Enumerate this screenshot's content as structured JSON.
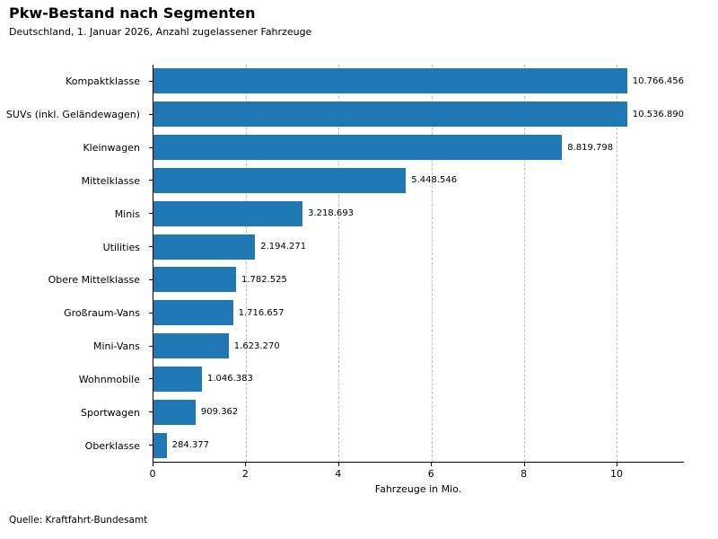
{
  "header": {
    "title": "Pkw-Bestand nach Segmenten",
    "subtitle": "Deutschland, 1. Januar 2026, Anzahl zugelassener Fahrzeuge"
  },
  "footer": {
    "source": "Quelle: Kraftfahrt-Bundesamt"
  },
  "chart_data": {
    "type": "bar",
    "orientation": "horizontal",
    "title": "Pkw-Bestand nach Segmenten",
    "subtitle": "Deutschland, 1. Januar 2026, Anzahl zugelassener Fahrzeuge",
    "xlabel": "Fahrzeuge in Mio.",
    "categories": [
      "Kompaktklasse",
      "SUVs (inkl. Geländewagen)",
      "Kleinwagen",
      "Mittelklasse",
      "Minis",
      "Utilities",
      "Obere Mittelklasse",
      "Großraum-Vans",
      "Mini-Vans",
      "Wohnmobile",
      "Sportwagen",
      "Oberklasse"
    ],
    "values": [
      10766456,
      10536890,
      8819798,
      5448546,
      3218693,
      2194271,
      1782525,
      1716657,
      1623270,
      1046383,
      909362,
      284377
    ],
    "value_labels": [
      "10.766.456",
      "10.536.890",
      "8.819.798",
      "5.448.546",
      "3.218.693",
      "2.194.271",
      "1.782.525",
      "1.716.657",
      "1.623.270",
      "1.046.383",
      "909.362",
      "284.377"
    ],
    "xlim_mio": [
      0,
      11.45
    ],
    "xticks_mio": [
      0,
      2,
      4,
      6,
      8,
      10
    ],
    "xtick_labels": [
      "0",
      "2",
      "4",
      "6",
      "8",
      "10"
    ],
    "grid": "vertical-dashed",
    "bar_color": "#1f77b4",
    "source": "Quelle: Kraftfahrt-Bundesamt"
  }
}
